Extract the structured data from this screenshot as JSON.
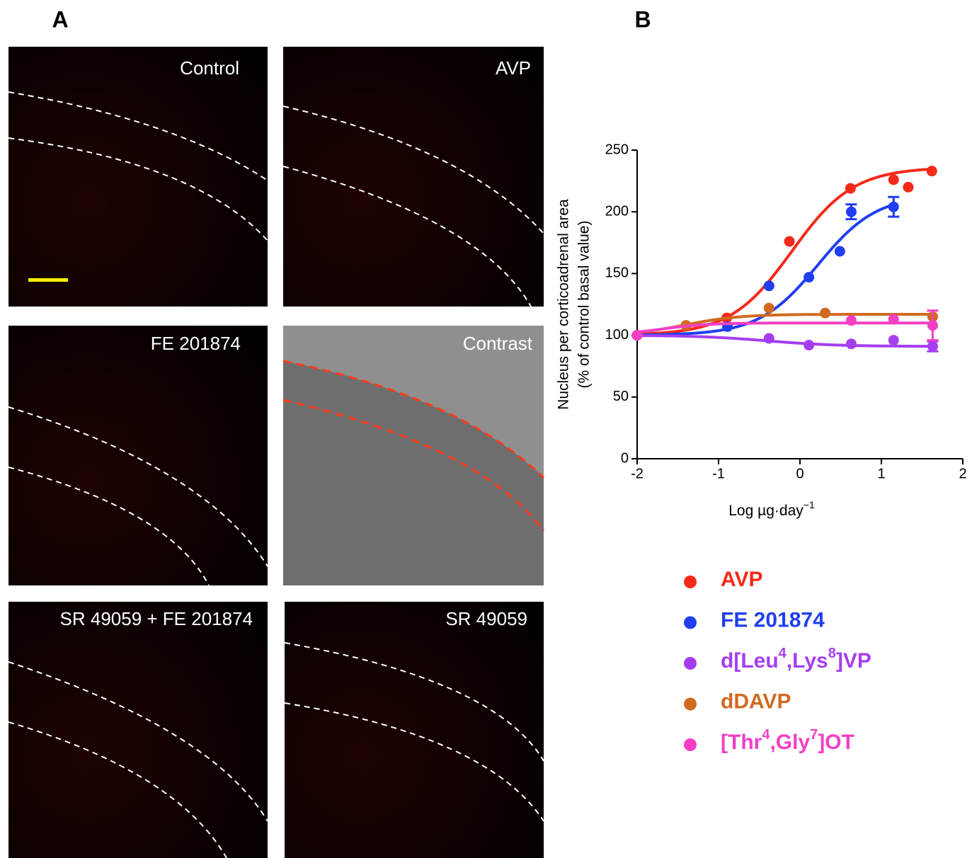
{
  "figure": {
    "panel_a_label": "A",
    "panel_b_label": "B",
    "images": [
      "Control",
      "AVP",
      "FE 201874",
      "Contrast",
      "SR 49059 + FE 201874",
      "SR 49059"
    ]
  },
  "chart_data": {
    "type": "scatter",
    "ylabel": [
      "Nucleus per corticoadrenal area",
      "(% of control basal value)"
    ],
    "xlabel": {
      "text": "Log µg·day",
      "sup": "−1"
    },
    "xlim": [
      -2,
      2
    ],
    "xticks": [
      -2,
      -1,
      0,
      1,
      2
    ],
    "ylim": [
      0,
      250
    ],
    "yticks": [
      0,
      50,
      100,
      150,
      200,
      250
    ],
    "series": [
      {
        "name": [
          {
            "text": "AVP"
          }
        ],
        "color": "#f52a1a",
        "x": [
          -2,
          -0.9,
          -0.13,
          0.62,
          1.15,
          1.33,
          1.62
        ],
        "values": [
          100,
          114,
          176,
          219,
          226,
          220,
          233
        ],
        "errors": [
          null,
          null,
          null,
          null,
          null,
          null,
          null
        ],
        "fit": {
          "bottom": 100,
          "top": 236,
          "logec50": -0.1,
          "hill": 1.15
        }
      },
      {
        "name": [
          {
            "text": "FE 201874"
          }
        ],
        "color": "#1f3ff0",
        "x": [
          -2,
          -0.89,
          -0.38,
          0.11,
          0.49,
          0.63,
          1.15
        ],
        "values": [
          100,
          107,
          140,
          147,
          168,
          200,
          204
        ],
        "errors": [
          null,
          null,
          null,
          null,
          null,
          6,
          8
        ],
        "fit": {
          "bottom": 100,
          "top": 214,
          "logec50": 0.22,
          "hill": 1.2
        }
      },
      {
        "name": [
          {
            "text": "d[Leu"
          },
          {
            "sup": "4"
          },
          {
            "text": ",Lys"
          },
          {
            "sup": "8"
          },
          {
            "text": "]VP"
          }
        ],
        "color": "#a53ef0",
        "x": [
          -2,
          -0.38,
          0.11,
          0.63,
          1.15,
          1.63
        ],
        "values": [
          100,
          97.5,
          92,
          93,
          96,
          91
        ],
        "errors": [
          null,
          null,
          null,
          null,
          null,
          4
        ],
        "fit": {
          "bottom": 100,
          "top": 91,
          "logec50": -0.4,
          "hill": 1
        }
      },
      {
        "name": [
          {
            "text": "dDAVP"
          }
        ],
        "color": "#d2691e",
        "x": [
          -2,
          -1.4,
          -0.38,
          0.31,
          1.63
        ],
        "values": [
          100,
          108,
          122,
          118,
          115
        ],
        "errors": [
          null,
          null,
          null,
          null,
          null
        ],
        "fit": {
          "bottom": 100,
          "top": 117,
          "logec50": -1.4,
          "hill": 1.3
        }
      },
      {
        "name": [
          {
            "text": "[Thr"
          },
          {
            "sup": "4"
          },
          {
            "text": ",Gly"
          },
          {
            "sup": "7"
          },
          {
            "text": "]OT"
          }
        ],
        "color": "#f23fc4",
        "x": [
          -2,
          0.63,
          1.15,
          1.63
        ],
        "values": [
          100,
          112,
          113,
          108
        ],
        "errors": [
          null,
          null,
          null,
          12
        ],
        "fit": {
          "bottom": 100,
          "top": 110,
          "logec50": -1.7,
          "hill": 1.5
        }
      }
    ]
  }
}
